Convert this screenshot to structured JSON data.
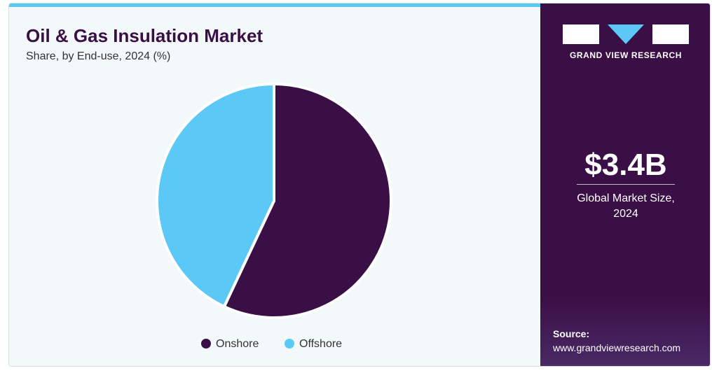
{
  "chart_data": {
    "type": "pie",
    "title": "Oil & Gas Insulation Market",
    "subtitle": "Share, by End-use, 2024 (%)",
    "categories": [
      "Onshore",
      "Offshore"
    ],
    "values": [
      57,
      43
    ],
    "colors": [
      "#3a0f46",
      "#5bc8f5"
    ],
    "legend": "bottom"
  },
  "side_panel": {
    "brand": "GRAND VIEW RESEARCH",
    "market_size": "$3.4B",
    "market_size_label": "Global Market Size, 2024",
    "source_label": "Source:",
    "source_url": "www.grandviewresearch.com"
  }
}
